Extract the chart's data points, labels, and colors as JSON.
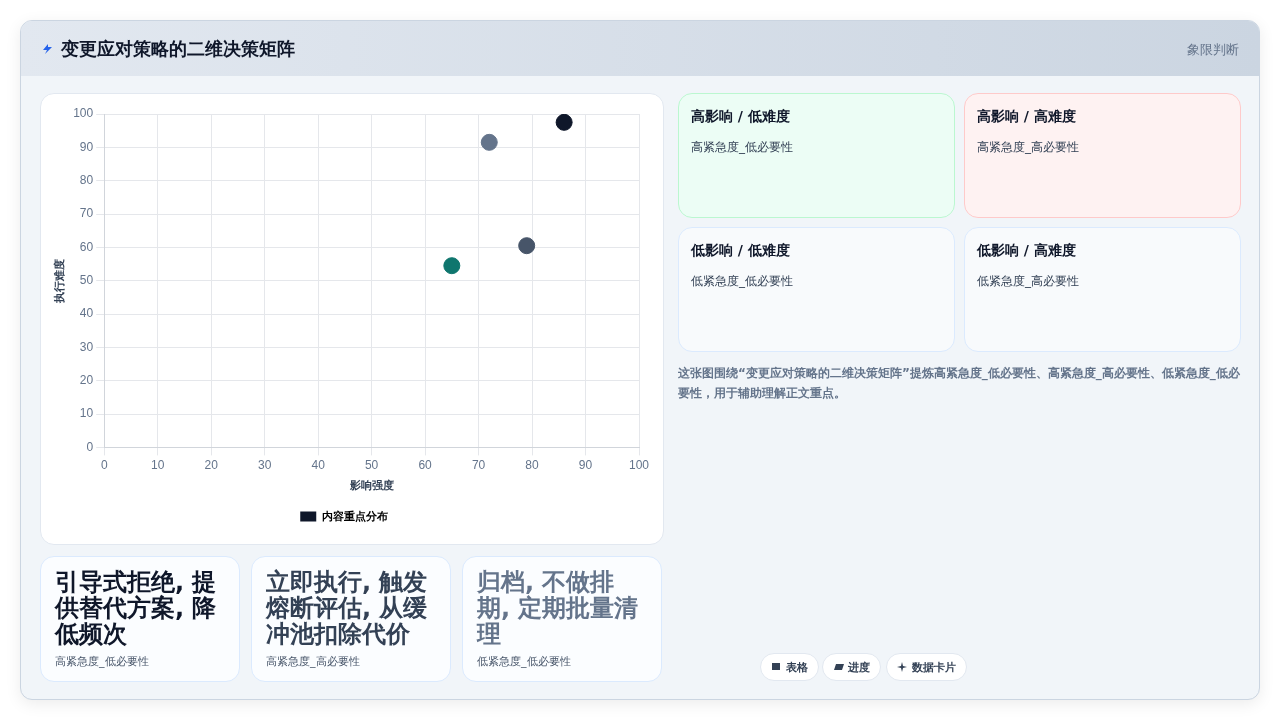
{
  "chart_data": [
    {
      "type": "scatter",
      "title": "变更应对策略的二维决策矩阵",
      "xlabel": "影响强度",
      "ylabel": "执行难度",
      "x": [
        65,
        72,
        79,
        86
      ],
      "series": [
        {
          "name": "内容重点分布",
          "color": "#0f172a",
          "colors": [
            "#0f766e",
            "#64748b",
            "#475569",
            "#0f172a"
          ],
          "values": [
            54.5,
            91.5,
            60.5,
            97.5
          ]
        }
      ],
      "xlim": [
        0,
        100
      ],
      "xticks": [
        0,
        10,
        20,
        30,
        40,
        50,
        60,
        70,
        80,
        90,
        100
      ],
      "ylim": [
        0,
        100
      ],
      "yticks": [
        0,
        10,
        20,
        30,
        40,
        50,
        60,
        70,
        80,
        90,
        100
      ],
      "grid": true,
      "legend": "bottom",
      "marker": "circle"
    },
    {
      "type": "other",
      "annotations": [
        "高影响 / 低难度",
        "高紧急度_低必要性",
        "高影响 / 高难度",
        "高紧急度_高必要性",
        "低影响 / 低难度",
        "低紧急度_低必要性",
        "低影响 / 高难度",
        "低紧急度_高必要性",
        "这张图围绕“变更应对策略的二维决策矩阵”提炼高紧急度_低必要性、高紧急度_高必要性、低紧急度_低必要性，用于辅助理解正文重点。",
        "引导式拒绝, 提供替代方案, 降低频次",
        "高紧急度_低必要性",
        "立即执行, 触发熔断评估, 从缓冲池扣除代价",
        "高紧急度_高必要性",
        "归档, 不做排期, 定期批量清理",
        "低紧急度_低必要性",
        "表格",
        "进度",
        "数据卡片",
        "象限判断"
      ]
    }
  ]
}
